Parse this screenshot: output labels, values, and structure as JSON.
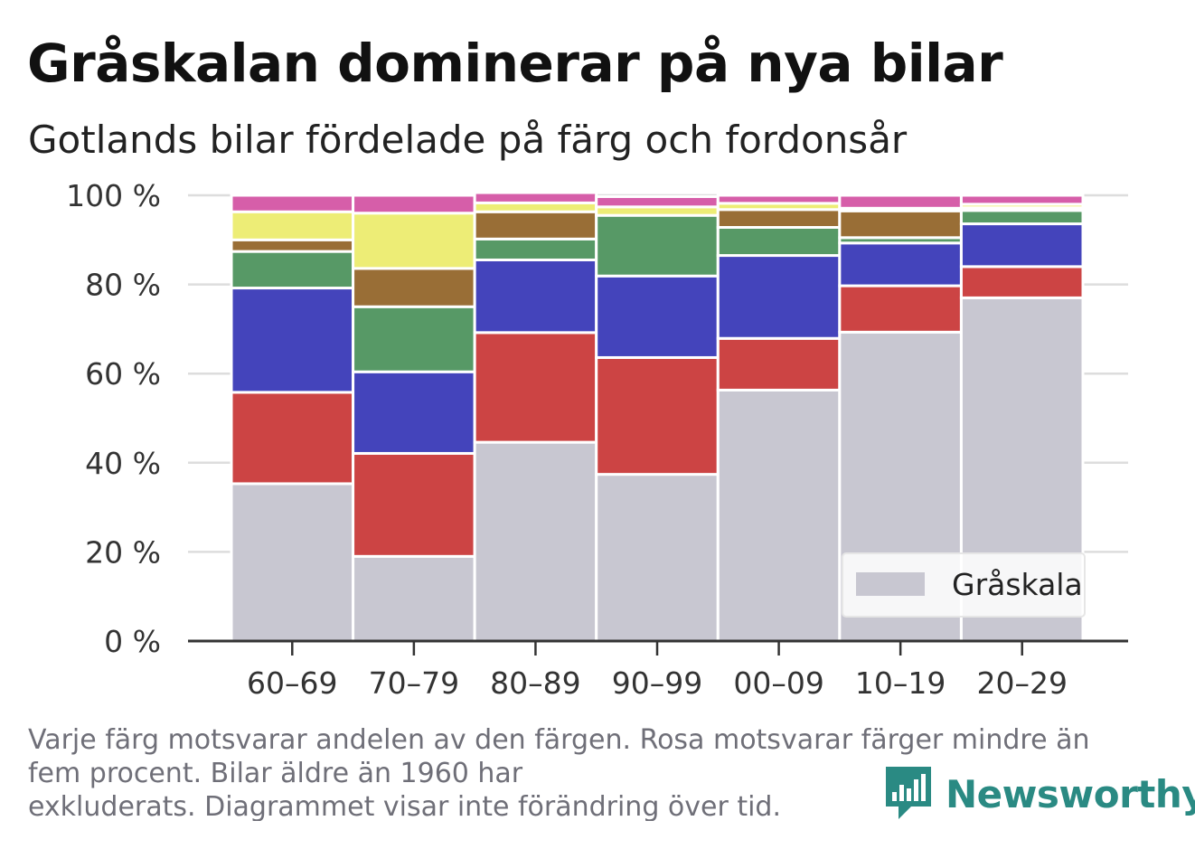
{
  "header": {
    "title": "Gråskalan dominerar på nya bilar",
    "subtitle": "Gotlands bilar fördelade på färg och fordonsår"
  },
  "chart_data": {
    "type": "bar",
    "stacked": true,
    "categories": [
      "60–69",
      "70–79",
      "80–89",
      "90–99",
      "00–09",
      "10–19",
      "20–29"
    ],
    "ylim": [
      0,
      100
    ],
    "yticks": [
      0,
      20,
      40,
      60,
      80,
      100
    ],
    "ytick_labels": [
      "0 %",
      "20 %",
      "40 %",
      "60 %",
      "80 %",
      "100 %"
    ],
    "grid": true,
    "legend": {
      "position": "bottom-right",
      "entries": [
        "Gråskala"
      ]
    },
    "series": [
      {
        "name": "Gråskala",
        "color": "#c8c7d1",
        "values": [
          35.3,
          19.0,
          44.6,
          37.4,
          56.3,
          69.3,
          77.0
        ]
      },
      {
        "color": "#cc4444",
        "values": [
          20.5,
          23.1,
          24.6,
          26.2,
          11.6,
          10.4,
          7.0
        ]
      },
      {
        "color": "#4444bb",
        "values": [
          23.4,
          18.3,
          16.3,
          18.3,
          18.6,
          9.6,
          9.6
        ]
      },
      {
        "color": "#579966",
        "values": [
          8.2,
          14.6,
          4.7,
          13.6,
          6.3,
          1.2,
          3.0
        ]
      },
      {
        "color": "#996e36",
        "values": [
          2.6,
          8.6,
          6.1,
          0,
          4.0,
          6.0,
          0.6
        ]
      },
      {
        "color": "#eded76",
        "values": [
          6.3,
          12.4,
          2.0,
          1.9,
          1.4,
          0.6,
          0.8
        ]
      },
      {
        "color": "#d65ea9",
        "values": [
          3.7,
          4.0,
          2.3,
          2.3,
          1.8,
          2.9,
          2.0
        ]
      }
    ]
  },
  "footer": {
    "note_lines": [
      "Varje färg motsvarar andelen av den färgen. Rosa motsvarar färger mindre än",
      "fem procent. Bilar äldre än 1960 har",
      "exkluderats. Diagrammet visar inte förändring över tid."
    ],
    "brand": "Newsworthy",
    "brand_color": "#2a8a83"
  }
}
